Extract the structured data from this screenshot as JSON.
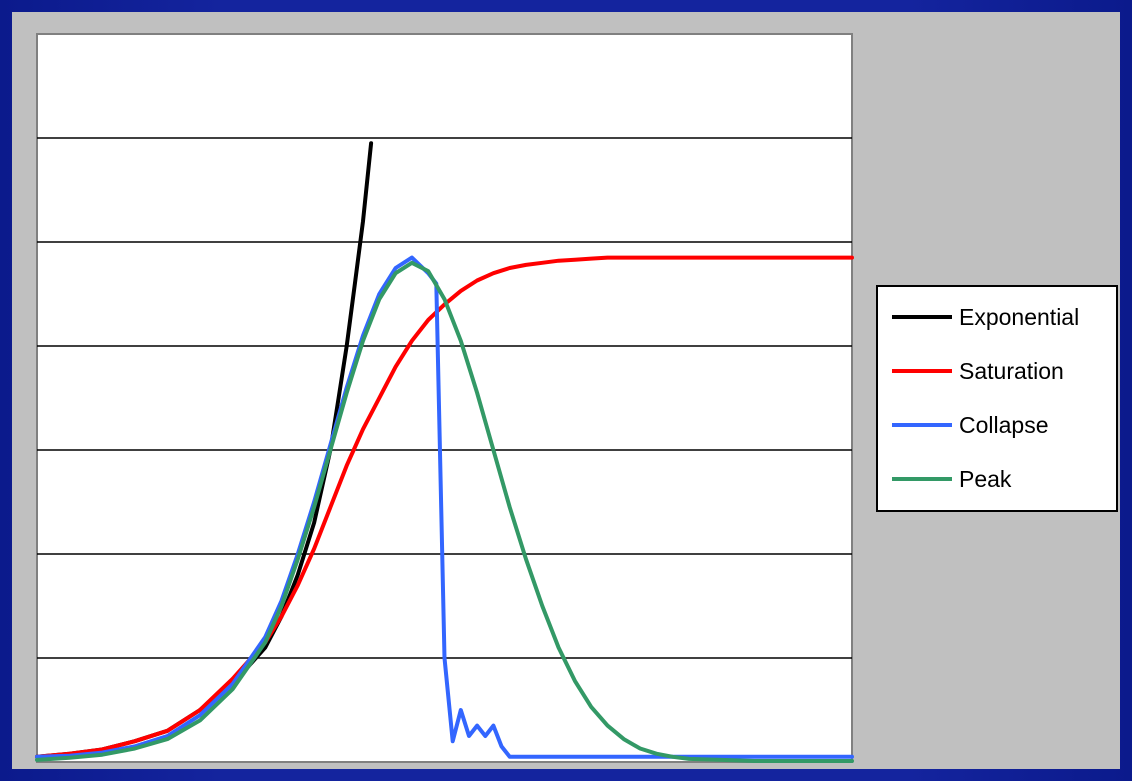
{
  "chart_data": {
    "type": "line",
    "title": "",
    "xlabel": "",
    "ylabel": "",
    "xlim": [
      0,
      100
    ],
    "ylim": [
      0,
      7
    ],
    "grid": true,
    "legend_position": "right",
    "series": [
      {
        "name": "Exponential",
        "color": "#000000",
        "x": [
          0,
          4,
          8,
          12,
          16,
          20,
          24,
          28,
          30,
          32,
          34,
          36,
          37,
          38,
          39,
          40,
          41
        ],
        "y": [
          0.05,
          0.08,
          0.12,
          0.2,
          0.3,
          0.5,
          0.75,
          1.1,
          1.4,
          1.8,
          2.3,
          3.0,
          3.5,
          4.0,
          4.6,
          5.2,
          5.95
        ]
      },
      {
        "name": "Saturation",
        "color": "#ff0000",
        "x": [
          0,
          4,
          8,
          12,
          16,
          20,
          24,
          28,
          30,
          32,
          34,
          36,
          38,
          40,
          42,
          44,
          46,
          48,
          50,
          52,
          54,
          56,
          58,
          60,
          62,
          64,
          66,
          68,
          70,
          72,
          75,
          80,
          85,
          90,
          95,
          100
        ],
        "y": [
          0.05,
          0.08,
          0.12,
          0.2,
          0.3,
          0.5,
          0.8,
          1.15,
          1.4,
          1.7,
          2.05,
          2.45,
          2.85,
          3.2,
          3.5,
          3.8,
          4.05,
          4.25,
          4.4,
          4.53,
          4.63,
          4.7,
          4.75,
          4.78,
          4.8,
          4.82,
          4.83,
          4.84,
          4.85,
          4.85,
          4.85,
          4.85,
          4.85,
          4.85,
          4.85,
          4.85
        ]
      },
      {
        "name": "Collapse",
        "color": "#3366ff",
        "x": [
          0,
          4,
          8,
          12,
          16,
          20,
          24,
          28,
          30,
          32,
          34,
          36,
          38,
          40,
          42,
          44,
          46,
          48,
          49,
          50,
          51,
          52,
          53,
          54,
          55,
          56,
          57,
          58,
          59,
          60,
          62,
          64,
          66,
          70,
          80,
          90,
          100
        ],
        "y": [
          0.05,
          0.06,
          0.09,
          0.15,
          0.25,
          0.45,
          0.75,
          1.2,
          1.55,
          2.0,
          2.5,
          3.05,
          3.6,
          4.1,
          4.5,
          4.75,
          4.85,
          4.7,
          4.6,
          1.0,
          0.2,
          0.5,
          0.25,
          0.35,
          0.25,
          0.35,
          0.15,
          0.05,
          0.05,
          0.05,
          0.05,
          0.05,
          0.05,
          0.05,
          0.05,
          0.05,
          0.05
        ]
      },
      {
        "name": "Peak",
        "color": "#339966",
        "x": [
          0,
          4,
          8,
          12,
          16,
          20,
          24,
          28,
          30,
          32,
          34,
          36,
          38,
          40,
          42,
          44,
          46,
          48,
          50,
          52,
          54,
          56,
          58,
          60,
          62,
          64,
          66,
          68,
          70,
          72,
          74,
          76,
          78,
          80,
          84,
          88,
          92,
          96,
          100
        ],
        "y": [
          0.02,
          0.04,
          0.07,
          0.13,
          0.22,
          0.4,
          0.7,
          1.15,
          1.5,
          1.95,
          2.45,
          3.0,
          3.55,
          4.05,
          4.45,
          4.7,
          4.8,
          4.72,
          4.45,
          4.05,
          3.55,
          3.0,
          2.45,
          1.95,
          1.5,
          1.1,
          0.78,
          0.53,
          0.35,
          0.22,
          0.13,
          0.08,
          0.05,
          0.03,
          0.02,
          0.01,
          0.01,
          0.01,
          0.01
        ]
      }
    ]
  }
}
